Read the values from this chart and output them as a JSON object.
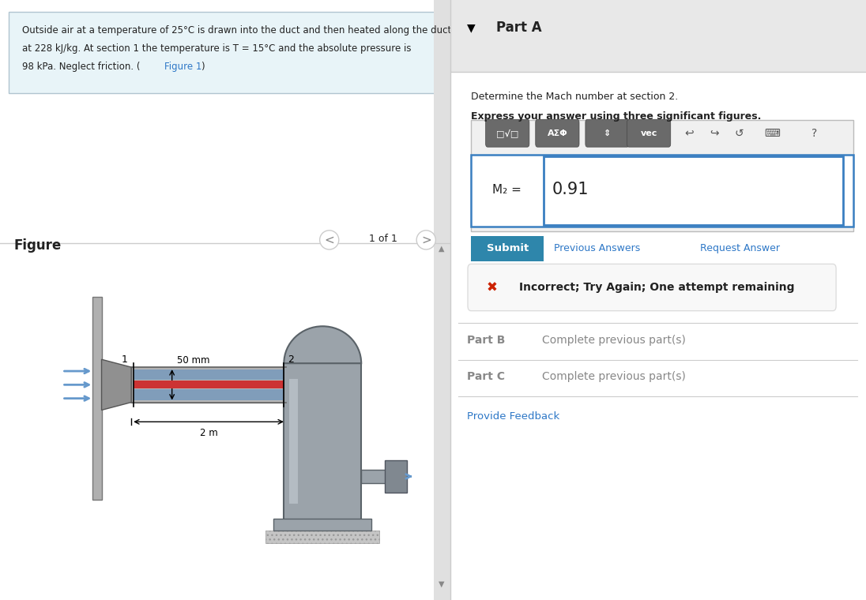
{
  "problem_text_line1": "Outside air at a temperature of 25°C is drawn into the duct and then heated along the duct",
  "problem_text_line2": "at 228 kJ/kg. At section 1 the temperature is T = 15°C and the absolute pressure is",
  "problem_text_line3_pre": "98 kPa. Neglect friction. (",
  "problem_text_line3_link": "Figure 1",
  "problem_text_line3_post": ")",
  "problem_bg_color": "#e8f4f8",
  "problem_border_color": "#b0c4d0",
  "parta_header": "Part A",
  "parta_question": "Determine the Mach number at section 2.",
  "parta_instruction": "Express your answer using three significant figures.",
  "m2_value": "0.91",
  "submit_text": "Submit",
  "submit_bg": "#2e86ab",
  "prev_answers_text": "Previous Answers",
  "request_answer_text": "Request Answer",
  "incorrect_text": "Incorrect; Try Again; One attempt remaining",
  "partb_text": "Part B",
  "partb_complete": "Complete previous part(s)",
  "partc_text": "Part C",
  "partc_complete": "Complete previous part(s)",
  "feedback_text": "Provide Feedback",
  "figure_title": "Figure",
  "nav_text": "1 of 1",
  "dim_50mm": "50 mm",
  "dim_2m": "2 m",
  "bg_white": "#ffffff",
  "divider_color": "#cccccc",
  "link_color": "#2e78c7",
  "text_color_dark": "#222222",
  "text_color_gray": "#888888",
  "input_border_color": "#3a7fc1",
  "input_bg": "#ffffff",
  "error_bg": "#f8f8f8",
  "error_border": "#dddddd",
  "error_red": "#cc2200",
  "header_gray": "#e8e8e8"
}
